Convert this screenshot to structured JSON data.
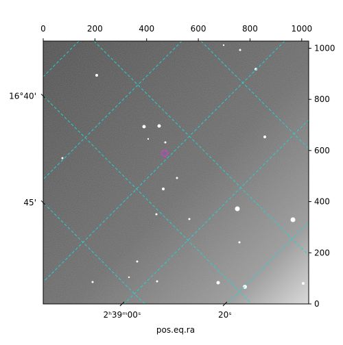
{
  "chart_data": {
    "type": "image",
    "xlabel": "pos.eq.ra",
    "xlim": [
      0,
      1027
    ],
    "ylim": [
      0,
      1028
    ],
    "xticks": [
      0,
      200,
      400,
      600,
      800,
      1000
    ],
    "yticks": [
      0,
      200,
      400,
      600,
      800,
      1000
    ],
    "world_xticks": [
      {
        "value": 305,
        "label": "2ʰ39ᵐ00ˢ"
      },
      {
        "value": 703,
        "label": "20ˢ"
      }
    ],
    "world_yticks": [
      {
        "value": 813,
        "label": "16°40'"
      },
      {
        "value": 396,
        "label": "45'"
      }
    ],
    "grid_color": "#22d3d3",
    "marker_color": "#d040d0"
  }
}
